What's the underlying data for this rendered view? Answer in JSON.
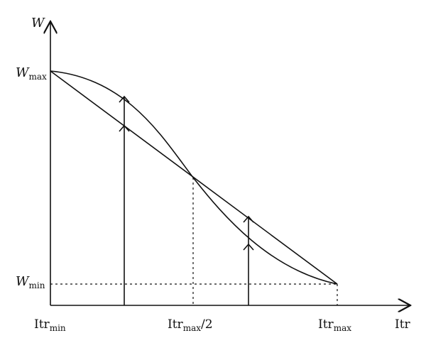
{
  "axes": {
    "y": {
      "label": "W",
      "max_label": {
        "base": "W",
        "sub": "max"
      },
      "min_label": {
        "base": "W",
        "sub": "min"
      }
    },
    "x": {
      "label": "Itr",
      "min_label": {
        "base": "Itr",
        "sub": "min"
      },
      "mid_label": {
        "base": "Itr",
        "sub": "max",
        "suffix": "/2"
      },
      "max_label": {
        "base": "Itr",
        "sub": "max"
      }
    }
  },
  "colors": {
    "stroke": "#111111",
    "background": "#ffffff"
  }
}
